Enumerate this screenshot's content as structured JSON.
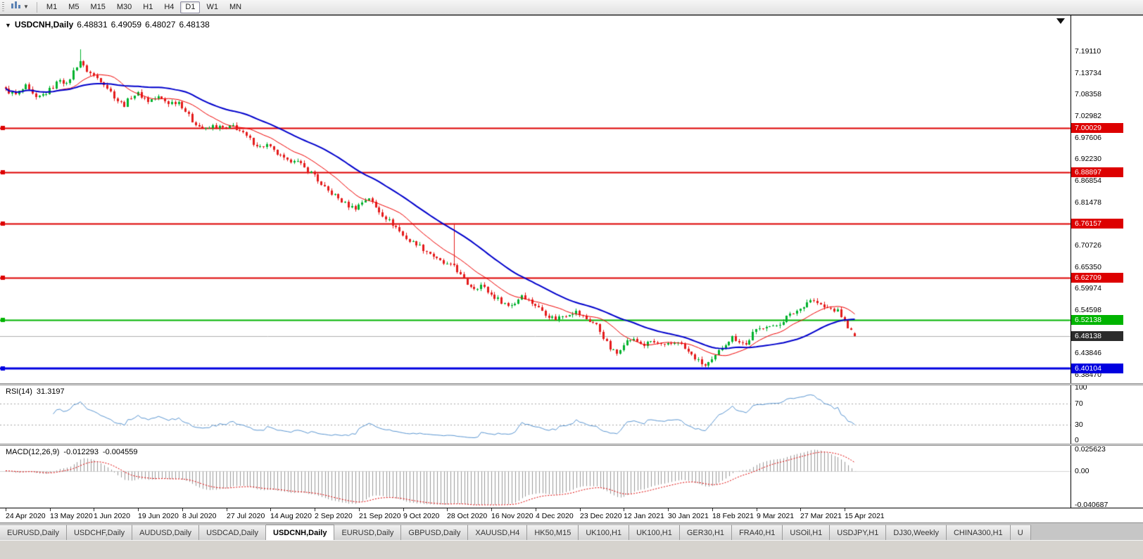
{
  "toolbar": {
    "timeframes": [
      {
        "label": "M1",
        "active": false
      },
      {
        "label": "M5",
        "active": false
      },
      {
        "label": "M15",
        "active": false
      },
      {
        "label": "M30",
        "active": false
      },
      {
        "label": "H1",
        "active": false
      },
      {
        "label": "H4",
        "active": false
      },
      {
        "label": "D1",
        "active": true
      },
      {
        "label": "W1",
        "active": false
      },
      {
        "label": "MN",
        "active": false
      }
    ]
  },
  "chart": {
    "symbol_line": {
      "collapse_arrow": "▼",
      "symbol": "USDCNH,Daily",
      "open": "6.48831",
      "high": "6.49059",
      "low": "6.48027",
      "close": "6.48138"
    },
    "price_axis": {
      "ticks": [
        "7.19110",
        "7.13734",
        "7.08358",
        "7.02982",
        "6.97606",
        "6.92230",
        "6.86854",
        "6.81478",
        "6.70726",
        "6.65350",
        "6.59974",
        "6.54598",
        "6.43846",
        "6.38470"
      ],
      "tags": [
        {
          "text": "7.00029",
          "price": 7.00029,
          "bg": "#dd0000"
        },
        {
          "text": "6.88897",
          "price": 6.88897,
          "bg": "#dd0000"
        },
        {
          "text": "6.76157",
          "price": 6.76157,
          "bg": "#dd0000"
        },
        {
          "text": "6.62709",
          "price": 6.62709,
          "bg": "#dd0000"
        },
        {
          "text": "6.52138",
          "price": 6.52138,
          "bg": "#00b400"
        },
        {
          "text": "6.48138",
          "price": 6.48138,
          "bg": "#2b2b2b"
        },
        {
          "text": "6.40104",
          "price": 6.40104,
          "bg": "#0000e0"
        }
      ]
    },
    "time_axis": {
      "labels": [
        "24 Apr 2020",
        "13 May 2020",
        "1 Jun 2020",
        "19 Jun 2020",
        "8 Jul 2020",
        "27 Jul 2020",
        "14 Aug 2020",
        "2 Sep 2020",
        "21 Sep 2020",
        "9 Oct 2020",
        "28 Oct 2020",
        "16 Nov 2020",
        "4 Dec 2020",
        "23 Dec 2020",
        "12 Jan 2021",
        "30 Jan 2021",
        "18 Feb 2021",
        "9 Mar 2021",
        "27 Mar 2021",
        "15 Apr 2021"
      ]
    }
  },
  "rsi": {
    "label": "RSI(14)",
    "value": "31.3197",
    "scale": [
      "100",
      "70",
      "30",
      "0"
    ]
  },
  "macd": {
    "label": "MACD(12,26,9)",
    "value": "-0.012293",
    "signal": "-0.004559",
    "scale": [
      "0.025623",
      "0.00",
      "-0.040687"
    ]
  },
  "tabs": [
    {
      "label": "EURUSD,Daily",
      "active": false
    },
    {
      "label": "USDCHF,Daily",
      "active": false
    },
    {
      "label": "AUDUSD,Daily",
      "active": false
    },
    {
      "label": "USDCAD,Daily",
      "active": false
    },
    {
      "label": "USDCNH,Daily",
      "active": true
    },
    {
      "label": "EURUSD,Daily",
      "active": false
    },
    {
      "label": "GBPUSD,Daily",
      "active": false
    },
    {
      "label": "XAUUSD,H4",
      "active": false
    },
    {
      "label": "HK50,M15",
      "active": false
    },
    {
      "label": "UK100,H1",
      "active": false
    },
    {
      "label": "UK100,H1",
      "active": false
    },
    {
      "label": "GER30,H1",
      "active": false
    },
    {
      "label": "FRA40,H1",
      "active": false
    },
    {
      "label": "USOil,H1",
      "active": false
    },
    {
      "label": "USDJPY,H1",
      "active": false
    },
    {
      "label": "DJ30,Weekly",
      "active": false
    },
    {
      "label": "CHINA300,H1",
      "active": false
    },
    {
      "label": "U",
      "active": false
    }
  ],
  "colors": {
    "candle_up": "#00b22d",
    "candle_down": "#e41b1b",
    "ma_fast": "#f00000",
    "ma_slow": "#0000cc",
    "rsi_line": "#5a96d2",
    "rsi_levels": "#a8a8a8",
    "macd_hist": "#999999",
    "macd_signal": "#e00000",
    "current_price_line": "#b0b0b0",
    "level_red": "#dd0000",
    "level_green": "#00b400",
    "level_blue": "#0000e0"
  },
  "chart_data": {
    "type": "candlestick",
    "symbol": "USDCNH",
    "timeframe": "Daily",
    "title": "USDCNH,Daily",
    "ohlc_current": {
      "open": 6.48831,
      "high": 6.49059,
      "low": 6.48027,
      "close": 6.48138
    },
    "x_axis_labels": [
      "24 Apr 2020",
      "13 May 2020",
      "1 Jun 2020",
      "19 Jun 2020",
      "8 Jul 2020",
      "27 Jul 2020",
      "14 Aug 2020",
      "2 Sep 2020",
      "21 Sep 2020",
      "9 Oct 2020",
      "28 Oct 2020",
      "16 Nov 2020",
      "4 Dec 2020",
      "23 Dec 2020",
      "12 Jan 2021",
      "30 Jan 2021",
      "18 Feb 2021",
      "9 Mar 2021",
      "27 Mar 2021",
      "15 Apr 2021"
    ],
    "days_per_label": 13,
    "total_days": 251,
    "y_top_tick": 7.1911,
    "y_bottom_tick": 6.3847,
    "close_anchors": [
      [
        0,
        7.095
      ],
      [
        3,
        7.082
      ],
      [
        6,
        7.103
      ],
      [
        9,
        7.072
      ],
      [
        12,
        7.088
      ],
      [
        14,
        7.102
      ],
      [
        16,
        7.122
      ],
      [
        18,
        7.108
      ],
      [
        20,
        7.142
      ],
      [
        22,
        7.168
      ],
      [
        23,
        7.152
      ],
      [
        25,
        7.136
      ],
      [
        27,
        7.124
      ],
      [
        29,
        7.112
      ],
      [
        31,
        7.09
      ],
      [
        33,
        7.068
      ],
      [
        35,
        7.058
      ],
      [
        37,
        7.078
      ],
      [
        39,
        7.086
      ],
      [
        42,
        7.068
      ],
      [
        45,
        7.076
      ],
      [
        48,
        7.062
      ],
      [
        51,
        7.066
      ],
      [
        53,
        7.042
      ],
      [
        55,
        7.018
      ],
      [
        57,
        7.004
      ],
      [
        59,
        6.996
      ],
      [
        61,
        7.004
      ],
      [
        63,
        7.002
      ],
      [
        65,
        6.998
      ],
      [
        67,
        7.006
      ],
      [
        69,
        6.992
      ],
      [
        71,
        6.978
      ],
      [
        73,
        6.964
      ],
      [
        75,
        6.952
      ],
      [
        77,
        6.958
      ],
      [
        79,
        6.942
      ],
      [
        81,
        6.928
      ],
      [
        83,
        6.916
      ],
      [
        85,
        6.922
      ],
      [
        87,
        6.908
      ],
      [
        89,
        6.893
      ],
      [
        91,
        6.884
      ],
      [
        93,
        6.856
      ],
      [
        95,
        6.842
      ],
      [
        97,
        6.832
      ],
      [
        99,
        6.818
      ],
      [
        101,
        6.806
      ],
      [
        103,
        6.801
      ],
      [
        105,
        6.816
      ],
      [
        107,
        6.826
      ],
      [
        109,
        6.801
      ],
      [
        111,
        6.784
      ],
      [
        113,
        6.768
      ],
      [
        115,
        6.752
      ],
      [
        117,
        6.732
      ],
      [
        119,
        6.718
      ],
      [
        121,
        6.712
      ],
      [
        123,
        6.698
      ],
      [
        125,
        6.688
      ],
      [
        127,
        6.672
      ],
      [
        129,
        6.662
      ],
      [
        131,
        6.656
      ],
      [
        132,
        6.658
      ],
      [
        134,
        6.632
      ],
      [
        136,
        6.612
      ],
      [
        138,
        6.601
      ],
      [
        140,
        6.608
      ],
      [
        142,
        6.592
      ],
      [
        144,
        6.578
      ],
      [
        146,
        6.568
      ],
      [
        148,
        6.557
      ],
      [
        150,
        6.563
      ],
      [
        152,
        6.585
      ],
      [
        154,
        6.57
      ],
      [
        156,
        6.558
      ],
      [
        158,
        6.545
      ],
      [
        160,
        6.531
      ],
      [
        162,
        6.524
      ],
      [
        164,
        6.532
      ],
      [
        166,
        6.538
      ],
      [
        168,
        6.542
      ],
      [
        170,
        6.529
      ],
      [
        172,
        6.519
      ],
      [
        174,
        6.509
      ],
      [
        176,
        6.478
      ],
      [
        178,
        6.449
      ],
      [
        180,
        6.438
      ],
      [
        182,
        6.463
      ],
      [
        184,
        6.473
      ],
      [
        186,
        6.468
      ],
      [
        188,
        6.458
      ],
      [
        190,
        6.468
      ],
      [
        192,
        6.462
      ],
      [
        194,
        6.456
      ],
      [
        196,
        6.463
      ],
      [
        198,
        6.468
      ],
      [
        200,
        6.449
      ],
      [
        202,
        6.433
      ],
      [
        204,
        6.419
      ],
      [
        206,
        6.408
      ],
      [
        208,
        6.419
      ],
      [
        210,
        6.443
      ],
      [
        212,
        6.463
      ],
      [
        214,
        6.479
      ],
      [
        216,
        6.469
      ],
      [
        218,
        6.459
      ],
      [
        220,
        6.489
      ],
      [
        222,
        6.499
      ],
      [
        224,
        6.509
      ],
      [
        226,
        6.503
      ],
      [
        228,
        6.513
      ],
      [
        230,
        6.529
      ],
      [
        232,
        6.539
      ],
      [
        234,
        6.549
      ],
      [
        236,
        6.566
      ],
      [
        237,
        6.572
      ],
      [
        239,
        6.563
      ],
      [
        241,
        6.553
      ],
      [
        243,
        6.549
      ],
      [
        245,
        6.543
      ],
      [
        247,
        6.519
      ],
      [
        249,
        6.493
      ],
      [
        250,
        6.48138
      ]
    ],
    "spikes": [
      {
        "day": 22,
        "high": 7.1961
      },
      {
        "day": 132,
        "high": 6.762
      }
    ],
    "levels": [
      {
        "price": 7.00029,
        "color": "#dd0000",
        "width": 2
      },
      {
        "price": 6.88897,
        "color": "#dd0000",
        "width": 2
      },
      {
        "price": 6.76157,
        "color": "#dd0000",
        "width": 2
      },
      {
        "price": 6.62709,
        "color": "#dd0000",
        "width": 2
      },
      {
        "price": 6.52138,
        "color": "#00b400",
        "width": 2
      },
      {
        "price": 6.40104,
        "color": "#0000e0",
        "width": 3
      }
    ],
    "current_price": 6.48138,
    "indicators": {
      "ma_fast": {
        "type": "SMA",
        "period": 13
      },
      "ma_slow": {
        "type": "SMA",
        "period": 34
      },
      "rsi": {
        "period": 14,
        "last": 31.3197,
        "levels": [
          70,
          30
        ],
        "range": [
          0,
          100
        ]
      },
      "macd": {
        "fast": 12,
        "slow": 26,
        "signal": 9,
        "last": -0.012293,
        "last_signal": -0.004559,
        "scale_max": 0.025623,
        "scale_min": -0.040687
      }
    }
  }
}
